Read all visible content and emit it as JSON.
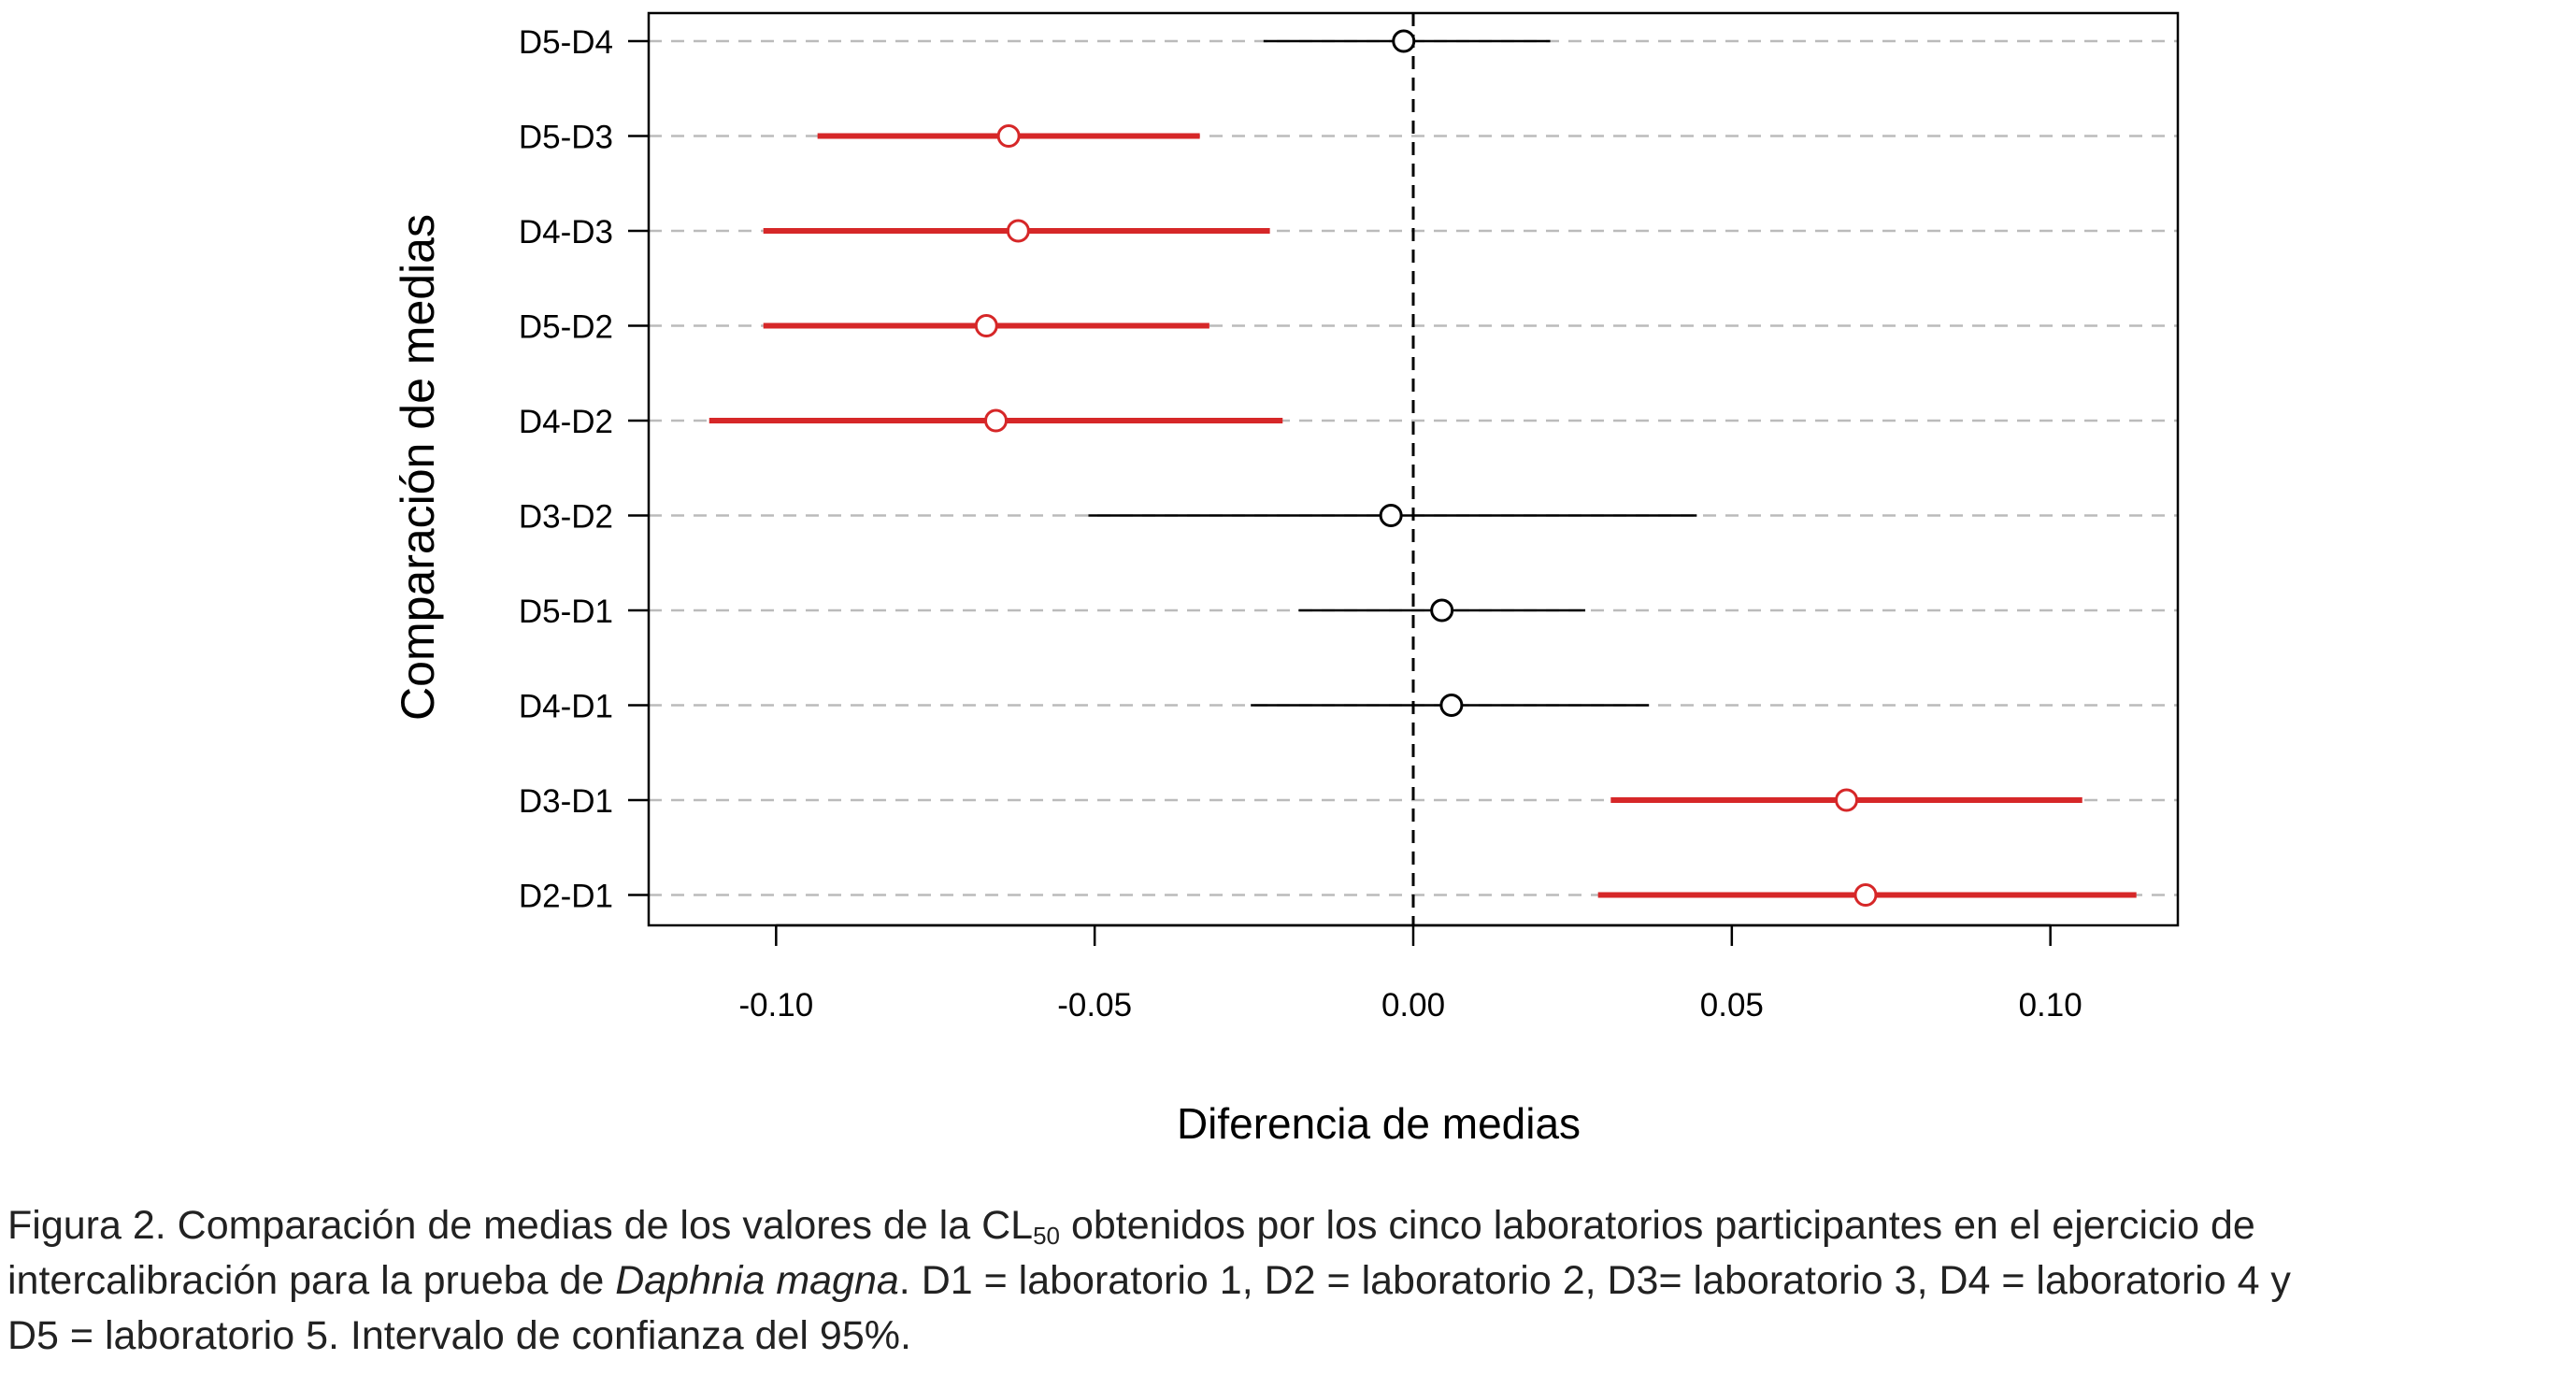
{
  "chart_data": {
    "type": "forest",
    "ylabel": "Comparación de medias",
    "xlabel": "Diferencia de medias",
    "xlim": [
      -0.12,
      0.12
    ],
    "x_ticks": [
      "-0.10",
      "-0.05",
      "0.00",
      "0.05",
      "0.10"
    ],
    "x_tick_values": [
      -0.1,
      -0.05,
      0.0,
      0.05,
      0.1
    ],
    "reference_line": 0,
    "grid": "horizontal dashed",
    "significant_color": "#d62728",
    "nonsignificant_color": "#000000",
    "comparisons": [
      {
        "label": "D5-D4",
        "estimate": -0.0015,
        "lower": -0.0235,
        "upper": 0.0215,
        "significant": false
      },
      {
        "label": "D5-D3",
        "estimate": -0.0635,
        "lower": -0.0935,
        "upper": -0.0335,
        "significant": true
      },
      {
        "label": "D4-D3",
        "estimate": -0.062,
        "lower": -0.102,
        "upper": -0.0225,
        "significant": true
      },
      {
        "label": "D5-D2",
        "estimate": -0.067,
        "lower": -0.102,
        "upper": -0.032,
        "significant": true
      },
      {
        "label": "D4-D2",
        "estimate": -0.0655,
        "lower": -0.1105,
        "upper": -0.0205,
        "significant": true
      },
      {
        "label": "D3-D2",
        "estimate": -0.0035,
        "lower": -0.051,
        "upper": 0.0445,
        "significant": false
      },
      {
        "label": "D5-D1",
        "estimate": 0.0045,
        "lower": -0.018,
        "upper": 0.027,
        "significant": false
      },
      {
        "label": "D4-D1",
        "estimate": 0.006,
        "lower": -0.0255,
        "upper": 0.037,
        "significant": false
      },
      {
        "label": "D3-D1",
        "estimate": 0.068,
        "lower": 0.031,
        "upper": 0.105,
        "significant": true
      },
      {
        "label": "D2-D1",
        "estimate": 0.071,
        "lower": 0.029,
        "upper": 0.1135,
        "significant": true
      }
    ]
  },
  "caption": {
    "part1": "Figura 2. Comparación de medias de los valores de la CL",
    "subscript": "50",
    "part2": " obtenidos por los cinco laboratorios participantes en el ejercicio de",
    "part3": "intercalibración para la prueba de ",
    "species": "Daphnia magna",
    "part4": ". D1 = laboratorio 1, D2 = laboratorio 2, D3= laboratorio 3, D4 = laboratorio 4 y",
    "part5": "D5 = laboratorio 5. Intervalo de confianza del 95%."
  }
}
